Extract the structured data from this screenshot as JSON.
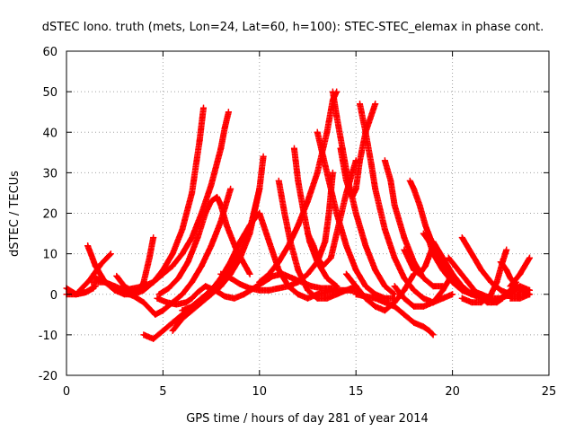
{
  "chart_data": {
    "type": "scatter",
    "title": "dSTEC Iono. truth (mets, Lon=24, Lat=60, h=100): STEC-STEC_elemax in phase cont.",
    "xlabel": "GPS time / hours of day 281 of year 2014",
    "ylabel": "dSTEC  / TECUs",
    "xlim": [
      0,
      25
    ],
    "ylim": [
      -20,
      60
    ],
    "xticks": [
      0,
      5,
      10,
      15,
      20,
      25
    ],
    "yticks": [
      -20,
      -10,
      0,
      10,
      20,
      30,
      40,
      50,
      60
    ],
    "grid": true,
    "marker": "plus",
    "color": "#ff0000",
    "series": [
      {
        "x": [
          0.0,
          0.5,
          1.0,
          1.5
        ],
        "y": [
          1.5,
          0.0,
          0.5,
          2.0
        ]
      },
      {
        "x": [
          0.0,
          0.5,
          1.0,
          1.4
        ],
        "y": [
          0.0,
          0.0,
          0.5,
          1.5
        ]
      },
      {
        "x": [
          1.1,
          1.5,
          2.0,
          2.5,
          3.0,
          3.5,
          4.0,
          4.5,
          5.0,
          5.5,
          6.0,
          6.5,
          6.9,
          7.1
        ],
        "y": [
          12,
          7,
          3,
          1,
          0,
          0,
          1,
          3,
          6,
          10,
          16,
          25,
          38,
          46
        ]
      },
      {
        "x": [
          0.6,
          1.2,
          1.8,
          2.3
        ],
        "y": [
          0.5,
          3.5,
          7.5,
          10
        ]
      },
      {
        "x": [
          1.3,
          2.0,
          2.5,
          3.0,
          3.5,
          4.0,
          4.5,
          5.0,
          5.5,
          6.0,
          6.5,
          7.0,
          7.5,
          8.0,
          8.2,
          8.4
        ],
        "y": [
          3,
          3,
          2,
          1,
          1.5,
          2,
          3,
          5,
          7,
          10,
          14,
          20,
          27,
          36,
          41,
          45
        ]
      },
      {
        "x": [
          1.5,
          2.0,
          2.5,
          3.0,
          3.5,
          4.0,
          4.4,
          4.6,
          5.0,
          5.5,
          6.0,
          6.5,
          7.0,
          7.5,
          8.0,
          8.5
        ],
        "y": [
          4,
          3,
          1.5,
          0.5,
          -0.5,
          -2,
          -4,
          -5,
          -4,
          -2,
          0,
          3,
          7,
          12,
          18,
          26
        ]
      },
      {
        "x": [
          2.6,
          3.0,
          3.5,
          3.8,
          4.0,
          4.3,
          4.5
        ],
        "y": [
          4.5,
          2,
          0.5,
          1,
          3,
          9,
          14
        ]
      },
      {
        "x": [
          4.0,
          4.5,
          5.0,
          5.5,
          6.0,
          6.5,
          7.0,
          7.5,
          8.0,
          8.5,
          9.0,
          9.5,
          9.8,
          10.0
        ],
        "y": [
          -10,
          -11,
          -9,
          -7,
          -5,
          -3,
          -1,
          1,
          3,
          6,
          10,
          16,
          22,
          26
        ]
      },
      {
        "x": [
          4.8,
          5.3,
          5.8,
          6.3,
          6.8,
          7.2,
          7.5,
          7.8,
          8.0,
          8.3,
          8.8,
          9.5
        ],
        "y": [
          0,
          1.5,
          4,
          8,
          14,
          20,
          23,
          24,
          22,
          17,
          11,
          5
        ]
      },
      {
        "x": [
          5.5,
          6.0,
          6.5,
          7.0,
          7.5,
          8.0,
          8.5,
          9.0,
          9.5,
          10.0,
          10.2
        ],
        "y": [
          -9,
          -6,
          -4,
          -2,
          0,
          2,
          5,
          9,
          15,
          26,
          34
        ]
      },
      {
        "x": [
          6.0,
          6.5,
          7.0,
          7.5,
          8.0,
          8.5,
          9.0,
          9.5,
          9.8,
          10.0,
          10.5,
          11.0,
          11.5,
          12.0,
          12.5,
          13.0,
          13.5,
          14.0
        ],
        "y": [
          -4,
          -3,
          -1,
          1,
          4,
          8,
          13,
          17,
          19,
          20,
          13,
          6,
          2,
          0,
          -1,
          0,
          0.5,
          1
        ]
      },
      {
        "x": [
          4.7,
          5.2,
          5.7,
          6.2,
          6.5,
          6.8,
          7.2,
          7.7,
          8.2,
          8.7,
          9.2,
          9.7,
          10.2,
          10.7,
          11.2,
          11.7,
          12.2,
          12.7,
          13.2,
          13.7,
          14.2,
          14.7,
          15.2
        ],
        "y": [
          -1,
          -2,
          -2.5,
          -2,
          -1,
          0.5,
          2,
          1,
          -0.5,
          -1,
          0,
          1.5,
          3,
          4.5,
          5,
          4,
          3,
          2,
          1.5,
          1.5,
          1,
          1,
          0.5
        ]
      },
      {
        "x": [
          8.0,
          8.5,
          9.0,
          9.5,
          10.0,
          10.5,
          11.0,
          11.5,
          12.0,
          12.5,
          13.0,
          13.4,
          13.6,
          13.8
        ],
        "y": [
          5,
          4,
          2.5,
          1.5,
          1,
          1,
          1.5,
          2,
          3,
          5,
          8,
          13,
          20,
          30
        ]
      },
      {
        "x": [
          11.0,
          11.3,
          11.6,
          12.0,
          12.5,
          13.0,
          13.5,
          14.0,
          14.5,
          15.0
        ],
        "y": [
          28,
          20,
          13,
          6,
          1,
          -1,
          -1,
          0,
          1,
          2
        ]
      },
      {
        "x": [
          10.0,
          10.5,
          11.0,
          11.5,
          12.0,
          12.5,
          13.0,
          13.5,
          13.8,
          14.0
        ],
        "y": [
          3,
          5,
          8,
          12,
          17,
          23,
          30,
          40,
          48,
          50
        ]
      },
      {
        "x": [
          11.8,
          12.0,
          12.3,
          12.6,
          13.0,
          13.5,
          14.0
        ],
        "y": [
          36,
          28,
          20,
          13,
          8,
          4,
          2
        ]
      },
      {
        "x": [
          13.0,
          13.3,
          13.6,
          14.0,
          14.5,
          15.0,
          15.5,
          16.0,
          16.5,
          17.0
        ],
        "y": [
          40,
          34,
          28,
          20,
          12,
          6,
          2,
          0,
          -1,
          -1
        ]
      },
      {
        "x": [
          12.5,
          12.8,
          13.0,
          13.3,
          13.7,
          14.0,
          14.5,
          15.0
        ],
        "y": [
          15,
          12,
          9,
          7,
          9,
          15,
          25,
          33
        ]
      },
      {
        "x": [
          13.8,
          14.0,
          14.3,
          14.6,
          15.0,
          15.5,
          16.0,
          16.5,
          17.0
        ],
        "y": [
          50,
          44,
          36,
          28,
          20,
          12,
          6,
          2,
          0
        ]
      },
      {
        "x": [
          14.2,
          14.5,
          14.8,
          15.0,
          15.2,
          15.5,
          16.0
        ],
        "y": [
          36,
          28,
          24,
          26,
          33,
          40,
          47
        ]
      },
      {
        "x": [
          15.2,
          15.5,
          15.8,
          16.0,
          16.5,
          17.0,
          17.5,
          18.0,
          18.5,
          19.0,
          19.5,
          20.0
        ],
        "y": [
          47,
          40,
          32,
          26,
          16,
          9,
          4,
          1,
          -1,
          -2,
          -1,
          0
        ]
      },
      {
        "x": [
          14.5,
          15.0,
          15.5,
          16.0,
          16.5,
          17.0,
          17.5,
          18.0
        ],
        "y": [
          5,
          2,
          -1,
          -3,
          -4,
          -2,
          1,
          5
        ]
      },
      {
        "x": [
          15.0,
          15.5,
          16.0,
          16.5,
          17.0,
          17.5,
          18.0,
          18.5,
          18.8,
          19.0
        ],
        "y": [
          0,
          -0.5,
          -1,
          -2,
          -3,
          -5,
          -7,
          -8,
          -9,
          -10
        ]
      },
      {
        "x": [
          16.5,
          16.8,
          17.0,
          17.5,
          18.0,
          18.5,
          19.0,
          19.5
        ],
        "y": [
          33,
          28,
          22,
          14,
          8,
          4,
          2,
          2
        ]
      },
      {
        "x": [
          17.0,
          17.5,
          18.0,
          18.5,
          19.0,
          19.5,
          20.0
        ],
        "y": [
          2,
          -1,
          -3,
          -3,
          -2,
          1,
          5
        ]
      },
      {
        "x": [
          17.5,
          17.8,
          18.0,
          18.3,
          18.6,
          19.0
        ],
        "y": [
          11,
          8,
          6,
          5,
          7,
          12
        ]
      },
      {
        "x": [
          17.8,
          18.0,
          18.3,
          18.6,
          19.0,
          19.5,
          20.0,
          20.5,
          21.0
        ],
        "y": [
          28,
          26,
          22,
          17,
          12,
          7,
          3,
          1,
          0
        ]
      },
      {
        "x": [
          18.5,
          18.8,
          19.0,
          19.5,
          20.0,
          20.5,
          21.0,
          21.5
        ],
        "y": [
          15,
          13,
          10,
          6,
          3,
          1,
          0,
          0
        ]
      },
      {
        "x": [
          19.0,
          19.5,
          20.0,
          20.5,
          21.0,
          21.5,
          22.0
        ],
        "y": [
          13,
          9,
          5,
          2,
          0,
          -1,
          -1
        ]
      },
      {
        "x": [
          19.8,
          20.3,
          20.8,
          21.3,
          21.8,
          22.3,
          22.6
        ],
        "y": [
          9,
          6,
          3,
          0,
          -2,
          -2,
          -1
        ]
      },
      {
        "x": [
          20.5,
          21.0,
          21.5,
          22.0,
          22.5,
          23.0,
          23.5
        ],
        "y": [
          14,
          10,
          6,
          3,
          1,
          0,
          0
        ]
      },
      {
        "x": [
          20.5,
          21.0,
          21.5,
          22.0,
          22.3,
          22.6,
          22.8
        ],
        "y": [
          -1,
          -2,
          -2,
          0,
          3,
          8,
          11
        ]
      },
      {
        "x": [
          21.0,
          21.5,
          22.0,
          22.5,
          23.0,
          23.3
        ],
        "y": [
          1,
          0,
          -1,
          -1,
          1,
          3
        ]
      },
      {
        "x": [
          22.5,
          22.8,
          23.0,
          23.5,
          24.0
        ],
        "y": [
          8,
          6,
          4,
          1,
          0
        ]
      },
      {
        "x": [
          22.0,
          22.5,
          23.0,
          23.5,
          24.0
        ],
        "y": [
          -2,
          -1,
          0,
          2,
          1
        ]
      },
      {
        "x": [
          23.0,
          23.5,
          24.0
        ],
        "y": [
          2,
          5,
          9
        ]
      },
      {
        "x": [
          23.0,
          23.5,
          24.0
        ],
        "y": [
          -1,
          -1,
          0
        ]
      }
    ]
  }
}
